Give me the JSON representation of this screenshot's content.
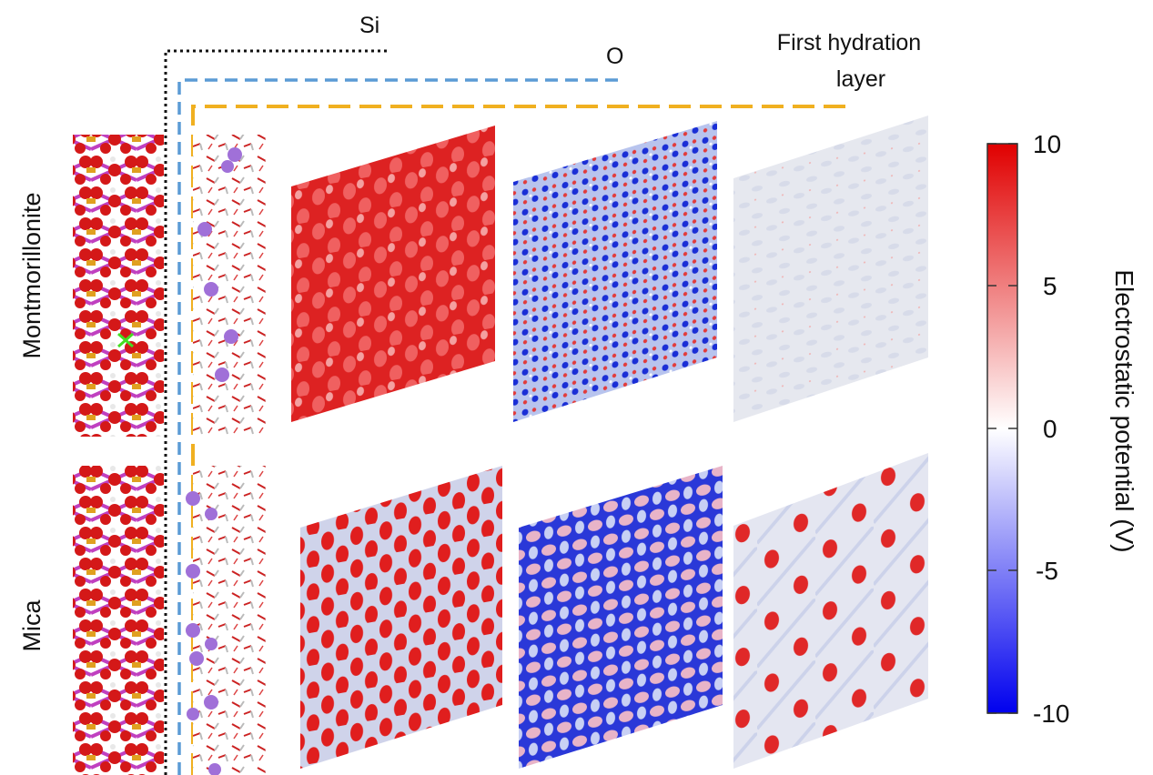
{
  "layer_labels": {
    "si": "Si",
    "o": "O",
    "hydration_line1": "First hydration",
    "hydration_line2": "layer"
  },
  "rows": [
    {
      "label": "Montmorillonite"
    },
    {
      "label": "Mica"
    }
  ],
  "colorbar": {
    "title": "Electrostatic potential (V)",
    "ticks": [
      "10",
      "5",
      "0",
      "-5",
      "-10"
    ],
    "range": [
      -10,
      10
    ],
    "colors": {
      "max": "#e00000",
      "mid": "#ffffff",
      "min": "#0000ee"
    }
  },
  "line_colors": {
    "si": "#111111",
    "o": "#5b9bd5",
    "hydration": "#f0b020"
  }
}
